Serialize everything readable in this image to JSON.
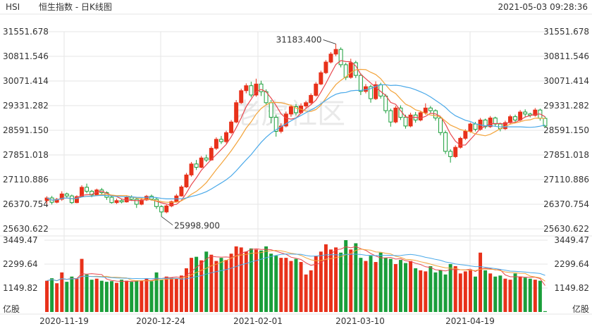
{
  "header": {
    "symbol": "HSI",
    "title": "恒生指数 - 日K线图",
    "timestamp": "2021-05-03 09:28:36"
  },
  "watermark": "老虎社区",
  "colors": {
    "up": "#e8311a",
    "down": "#1a9e3a",
    "ma5": "#e8474e",
    "ma10": "#f3a43b",
    "ma20": "#4aa9e9",
    "grid": "#e6e6e6",
    "text": "#333333"
  },
  "chart_data": [
    {
      "type": "candlestick",
      "name": "恒生指数 日K",
      "y_ticks": [
        "31551.678",
        "30811.546",
        "30071.414",
        "29331.282",
        "28591.150",
        "27851.018",
        "27110.886",
        "26370.754",
        "25630.622"
      ],
      "ylim": [
        25630.622,
        31551.678
      ],
      "x_ticks": [
        "2020-11-19",
        "2020-12-24",
        "2021-02-01",
        "2021-03-10",
        "2021-04-19"
      ],
      "annotations": [
        {
          "text": "31183.400",
          "type": "high"
        },
        {
          "text": "25998.900",
          "type": "low"
        }
      ],
      "moving_averages": [
        "MA5",
        "MA10",
        "MA20"
      ],
      "candles": [
        [
          26480,
          26560,
          26380,
          26610
        ],
        [
          26560,
          26430,
          26360,
          26620
        ],
        [
          26430,
          26520,
          26400,
          26560
        ],
        [
          26520,
          26680,
          26470,
          26760
        ],
        [
          26680,
          26620,
          26560,
          26720
        ],
        [
          26620,
          26420,
          26380,
          26660
        ],
        [
          26420,
          26600,
          26400,
          26640
        ],
        [
          26600,
          26880,
          26580,
          26940
        ],
        [
          26880,
          26760,
          26700,
          26990
        ],
        [
          26760,
          26650,
          26580,
          26800
        ],
        [
          26650,
          26800,
          26620,
          26840
        ],
        [
          26800,
          26720,
          26660,
          26860
        ],
        [
          26720,
          26580,
          26500,
          26760
        ],
        [
          26580,
          26420,
          26390,
          26620
        ],
        [
          26420,
          26480,
          26380,
          26540
        ],
        [
          26480,
          26440,
          26400,
          26520
        ],
        [
          26440,
          26580,
          26420,
          26620
        ],
        [
          26580,
          26520,
          26470,
          26640
        ],
        [
          26520,
          26370,
          26260,
          26560
        ],
        [
          26370,
          26500,
          26340,
          26560
        ],
        [
          26500,
          26610,
          26470,
          26650
        ],
        [
          26610,
          26520,
          26480,
          26660
        ],
        [
          26520,
          26300,
          26230,
          26560
        ],
        [
          26300,
          26140,
          25999,
          26340
        ],
        [
          26140,
          26320,
          26100,
          26360
        ],
        [
          26320,
          26450,
          26280,
          26480
        ],
        [
          26450,
          26620,
          26420,
          26680
        ],
        [
          26620,
          26890,
          26600,
          26940
        ],
        [
          26890,
          27250,
          26860,
          27310
        ],
        [
          27250,
          27580,
          27200,
          27640
        ],
        [
          27580,
          27480,
          27400,
          27700
        ],
        [
          27480,
          27760,
          27450,
          27820
        ],
        [
          27760,
          27700,
          27640,
          27860
        ],
        [
          27700,
          28050,
          27680,
          28110
        ],
        [
          28050,
          28320,
          28000,
          28380
        ],
        [
          28320,
          28250,
          28180,
          28420
        ],
        [
          28250,
          28520,
          28200,
          28580
        ],
        [
          28520,
          28840,
          28480,
          28900
        ],
        [
          28840,
          29420,
          28800,
          29500
        ],
        [
          29420,
          29780,
          29380,
          29840
        ],
        [
          29780,
          29930,
          29700,
          30000
        ],
        [
          29930,
          29650,
          29580,
          30050
        ],
        [
          29650,
          29980,
          29600,
          30140
        ],
        [
          29980,
          29750,
          29620,
          30080
        ],
        [
          29750,
          29420,
          29350,
          29820
        ],
        [
          29420,
          28980,
          28800,
          29500
        ],
        [
          28980,
          28560,
          28400,
          29060
        ],
        [
          28560,
          28720,
          28500,
          28800
        ],
        [
          28720,
          29080,
          28680,
          29150
        ],
        [
          29080,
          29300,
          29000,
          29360
        ],
        [
          29300,
          29120,
          29040,
          29380
        ],
        [
          29120,
          29320,
          29080,
          29400
        ],
        [
          29320,
          29420,
          29250,
          29480
        ],
        [
          29420,
          29640,
          29380,
          29700
        ],
        [
          29640,
          29980,
          29600,
          30040
        ],
        [
          29980,
          30320,
          29950,
          30380
        ],
        [
          30320,
          30640,
          30280,
          30700
        ],
        [
          30640,
          30880,
          30600,
          30940
        ],
        [
          30880,
          31020,
          30820,
          31183
        ],
        [
          31020,
          30560,
          30480,
          31080
        ],
        [
          30560,
          30180,
          30100,
          30620
        ],
        [
          30180,
          30620,
          30140,
          30740
        ],
        [
          30620,
          30240,
          30160,
          30680
        ],
        [
          30240,
          29760,
          29650,
          30300
        ],
        [
          29760,
          29900,
          29700,
          29980
        ],
        [
          29900,
          29540,
          29420,
          29960
        ],
        [
          29540,
          29960,
          29500,
          30060
        ],
        [
          29960,
          29620,
          29540,
          30020
        ],
        [
          29620,
          29180,
          29100,
          29680
        ],
        [
          29180,
          28840,
          28700,
          29240
        ],
        [
          28840,
          29260,
          28800,
          29320
        ],
        [
          29260,
          28980,
          28900,
          29340
        ],
        [
          28980,
          28720,
          28640,
          29060
        ],
        [
          28720,
          29050,
          28680,
          29120
        ],
        [
          29050,
          28900,
          28820,
          29140
        ],
        [
          28900,
          29120,
          28860,
          29180
        ],
        [
          29120,
          29260,
          29060,
          29400
        ],
        [
          29260,
          29180,
          29100,
          29320
        ],
        [
          29180,
          28960,
          28880,
          29220
        ],
        [
          28960,
          28520,
          28440,
          29020
        ],
        [
          28520,
          27960,
          27880,
          28580
        ],
        [
          27960,
          27800,
          27620,
          28020
        ],
        [
          27800,
          28080,
          27760,
          28140
        ],
        [
          28080,
          28350,
          28040,
          28400
        ],
        [
          28350,
          28560,
          28300,
          28620
        ],
        [
          28560,
          28780,
          28520,
          28820
        ],
        [
          28780,
          28620,
          28560,
          28840
        ],
        [
          28620,
          28900,
          28580,
          28960
        ],
        [
          28900,
          28700,
          28640,
          28940
        ],
        [
          28700,
          28960,
          28660,
          29020
        ],
        [
          28960,
          28780,
          28700,
          29000
        ],
        [
          28780,
          28640,
          28560,
          28820
        ],
        [
          28640,
          28820,
          28600,
          28880
        ],
        [
          28820,
          29000,
          28780,
          29060
        ],
        [
          29000,
          28900,
          28840,
          29060
        ],
        [
          28900,
          29140,
          28860,
          29200
        ],
        [
          29140,
          29080,
          29000,
          29220
        ],
        [
          29080,
          29040,
          28980,
          29120
        ],
        [
          29040,
          29200,
          29000,
          29260
        ],
        [
          29200,
          28950,
          28880,
          29240
        ],
        [
          28950,
          28720,
          28680,
          29000
        ]
      ],
      "volume": {
        "y_ticks": [
          "3449.47",
          "2299.64",
          "1149.82"
        ],
        "ylim": [
          0,
          3449.47
        ],
        "unit_label": "亿股",
        "values": [
          1500,
          1620,
          1380,
          1900,
          1450,
          1700,
          1600,
          2550,
          1800,
          1550,
          1600,
          1500,
          1450,
          1480,
          1400,
          1550,
          1500,
          1450,
          1520,
          1500,
          1600,
          1480,
          1900,
          1560,
          1700,
          1650,
          1600,
          1750,
          2100,
          2600,
          2650,
          2480,
          2900,
          2750,
          2450,
          2600,
          2500,
          2800,
          3150,
          3100,
          2900,
          3050,
          3000,
          2950,
          3150,
          2800,
          2700,
          2600,
          2600,
          2450,
          2550,
          2400,
          1800,
          2000,
          2700,
          2900,
          3250,
          3000,
          3100,
          2850,
          3450,
          3000,
          3300,
          2600,
          2450,
          2700,
          2400,
          2850,
          2600,
          2550,
          2300,
          2500,
          2350,
          2450,
          2100,
          2000,
          1950,
          2200,
          1900,
          2000,
          1800,
          2300,
          2200,
          1850,
          1950,
          2000,
          1700,
          2850,
          2000,
          1850,
          1700,
          1750,
          1600,
          1550,
          1850,
          1700,
          1650,
          1600,
          1550,
          1500,
          40
        ]
      }
    }
  ]
}
